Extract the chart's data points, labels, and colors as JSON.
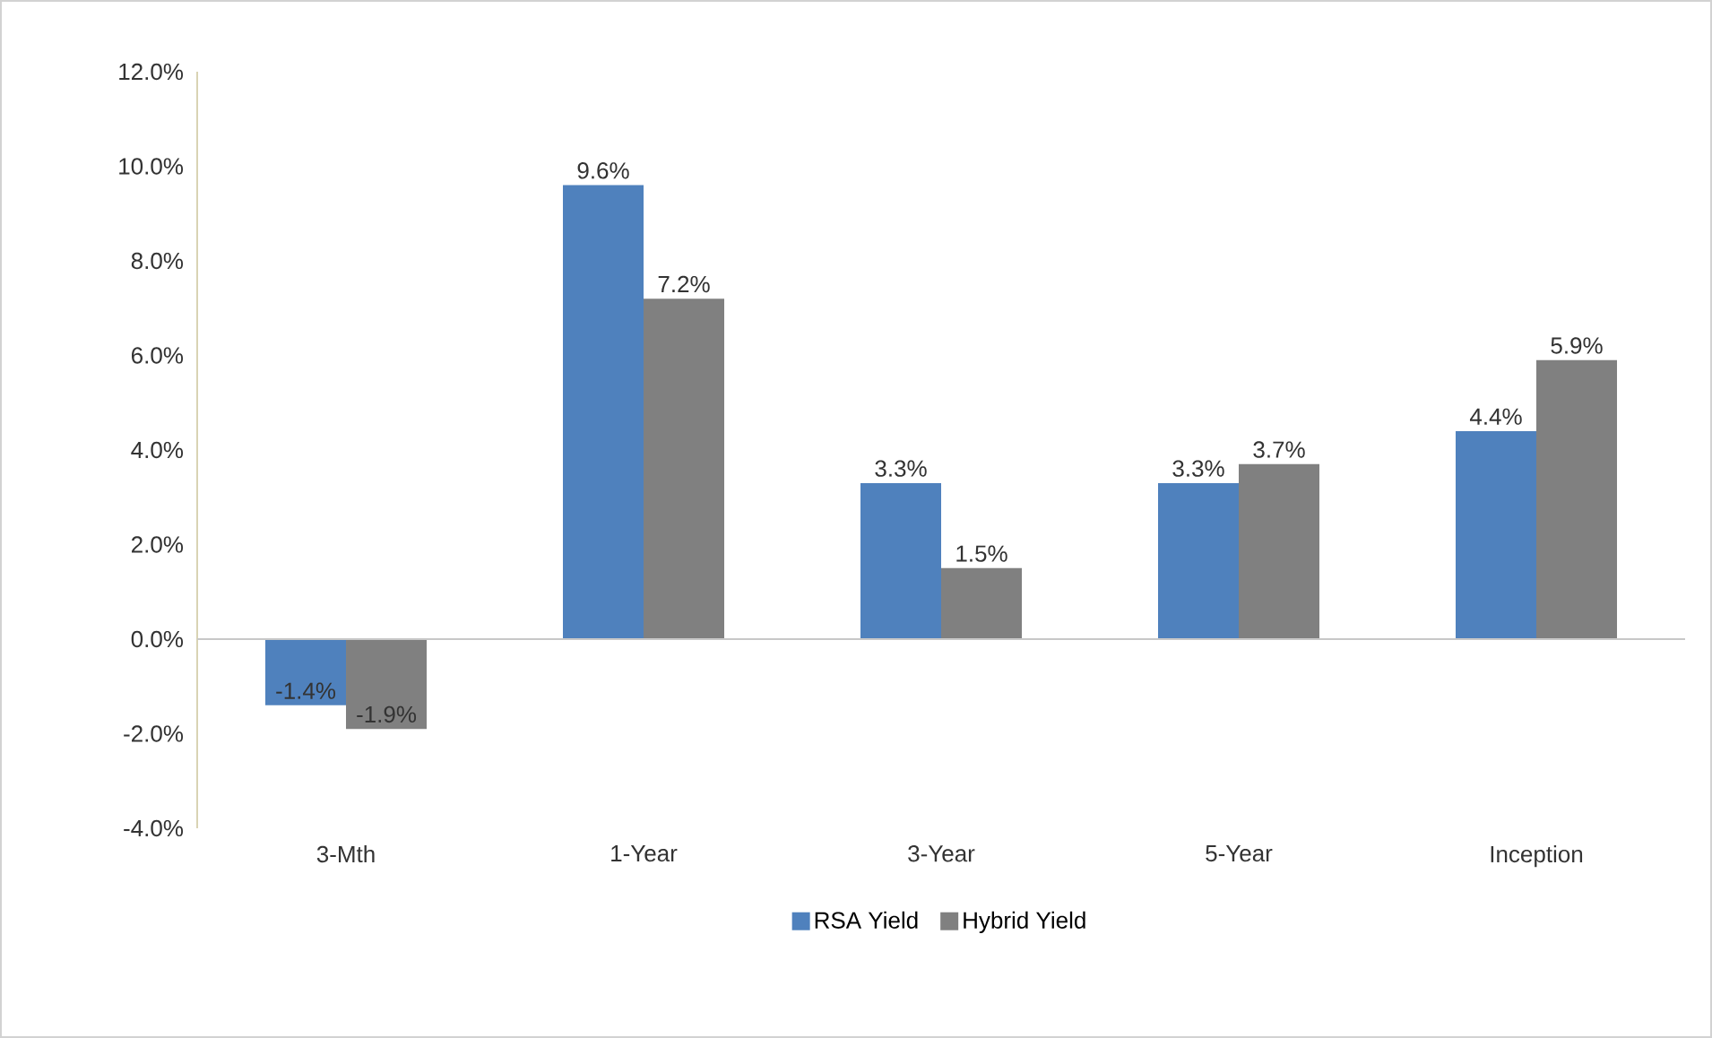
{
  "chart_data": {
    "type": "bar",
    "categories": [
      "3-Mth",
      "1-Year",
      "3-Year",
      "5-Year",
      "Inception"
    ],
    "series": [
      {
        "name": "RSA Yield",
        "color": "#4f81bd",
        "values": [
          -1.4,
          9.6,
          3.3,
          3.3,
          4.4
        ],
        "value_labels": [
          "-1.4%",
          "9.6%",
          "3.3%",
          "3.3%",
          "4.4%"
        ]
      },
      {
        "name": "Hybrid Yield",
        "color": "#808080",
        "values": [
          -1.9,
          7.2,
          1.5,
          3.7,
          5.9
        ],
        "value_labels": [
          "-1.9%",
          "7.2%",
          "1.5%",
          "3.7%",
          "5.9%"
        ]
      }
    ],
    "ylim": [
      -4,
      12
    ],
    "yticks": [
      {
        "value": -4,
        "label": "-4.0%"
      },
      {
        "value": -2,
        "label": "-2.0%"
      },
      {
        "value": 0,
        "label": "0.0%"
      },
      {
        "value": 2,
        "label": "2.0%"
      },
      {
        "value": 4,
        "label": "4.0%"
      },
      {
        "value": 6,
        "label": "6.0%"
      },
      {
        "value": 8,
        "label": "8.0%"
      },
      {
        "value": 10,
        "label": "10.0%"
      },
      {
        "value": 12,
        "label": "12.0%"
      }
    ],
    "legend": "bottom"
  }
}
